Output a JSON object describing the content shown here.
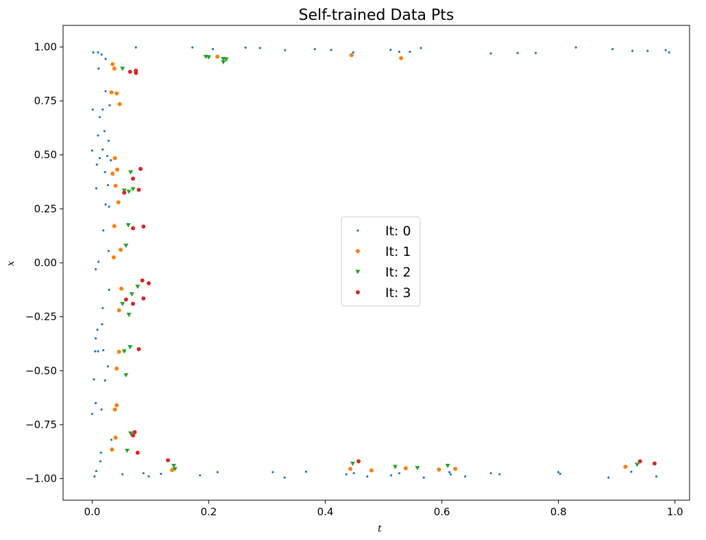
{
  "chart_data": {
    "type": "scatter",
    "title": "Self-trained Data Pts",
    "xlabel": "t",
    "ylabel": "x",
    "xlim": [
      -0.05,
      1.025
    ],
    "ylim": [
      -1.1,
      1.1
    ],
    "xticks": [
      0.0,
      0.2,
      0.4,
      0.6,
      0.8,
      1.0
    ],
    "xtick_labels": [
      "0.0",
      "0.2",
      "0.4",
      "0.6",
      "0.8",
      "1.0"
    ],
    "yticks": [
      1.0,
      0.75,
      0.5,
      0.25,
      0.0,
      -0.25,
      -0.5,
      -0.75,
      -1.0
    ],
    "ytick_labels": [
      "1.00",
      "0.75",
      "0.50",
      "0.25",
      "0.00",
      "−0.25",
      "−0.50",
      "−0.75",
      "−1.00"
    ],
    "grid": false,
    "legend_position": "center",
    "series": [
      {
        "name": "It: 0",
        "marker": "circle-small",
        "color": "#1f77b4",
        "points": [
          [
            0.002,
            0.975
          ],
          [
            0.01,
            0.975
          ],
          [
            0.016,
            0.965
          ],
          [
            0.023,
            0.945
          ],
          [
            0.011,
            0.9
          ],
          [
            0.075,
            0.998
          ],
          [
            0.172,
            0.998
          ],
          [
            0.207,
            0.99
          ],
          [
            0.263,
            0.997
          ],
          [
            0.288,
            0.995
          ],
          [
            0.331,
            0.985
          ],
          [
            0.382,
            0.99
          ],
          [
            0.41,
            0.986
          ],
          [
            0.448,
            0.975
          ],
          [
            0.512,
            0.987
          ],
          [
            0.527,
            0.978
          ],
          [
            0.545,
            0.978
          ],
          [
            0.564,
            0.995
          ],
          [
            0.684,
            0.97
          ],
          [
            0.73,
            0.972
          ],
          [
            0.761,
            0.972
          ],
          [
            0.83,
            0.998
          ],
          [
            0.893,
            0.99
          ],
          [
            0.927,
            0.982
          ],
          [
            0.953,
            0.982
          ],
          [
            0.984,
            0.985
          ],
          [
            0.99,
            0.975
          ],
          [
            0.023,
            0.795
          ],
          [
            0.018,
            0.71
          ],
          [
            0.001,
            0.71
          ],
          [
            0.03,
            0.73
          ],
          [
            0.013,
            0.675
          ],
          [
            0.021,
            0.61
          ],
          [
            0.01,
            0.59
          ],
          [
            0.028,
            0.565
          ],
          [
            0.0,
            0.52
          ],
          [
            0.018,
            0.525
          ],
          [
            0.026,
            0.495
          ],
          [
            0.013,
            0.485
          ],
          [
            0.032,
            0.475
          ],
          [
            0.008,
            0.455
          ],
          [
            0.022,
            0.42
          ],
          [
            0.027,
            0.36
          ],
          [
            0.007,
            0.345
          ],
          [
            0.023,
            0.27
          ],
          [
            0.029,
            0.26
          ],
          [
            0.019,
            0.15
          ],
          [
            0.028,
            0.055
          ],
          [
            0.011,
            0.005
          ],
          [
            0.006,
            -0.03
          ],
          [
            0.029,
            -0.125
          ],
          [
            0.018,
            -0.21
          ],
          [
            0.017,
            -0.285
          ],
          [
            0.009,
            -0.31
          ],
          [
            0.006,
            -0.35
          ],
          [
            0.005,
            -0.41
          ],
          [
            0.01,
            -0.41
          ],
          [
            0.019,
            -0.405
          ],
          [
            0.027,
            -0.48
          ],
          [
            0.003,
            -0.54
          ],
          [
            0.022,
            -0.545
          ],
          [
            0.006,
            -0.65
          ],
          [
            0.016,
            -0.68
          ],
          [
            0.0,
            -0.7
          ],
          [
            0.033,
            -0.82
          ],
          [
            0.015,
            -0.88
          ],
          [
            0.014,
            -0.92
          ],
          [
            0.007,
            -0.965
          ],
          [
            0.004,
            -0.99
          ],
          [
            0.052,
            -0.98
          ],
          [
            0.088,
            -0.975
          ],
          [
            0.097,
            -0.99
          ],
          [
            0.118,
            -0.978
          ],
          [
            0.185,
            -0.985
          ],
          [
            0.215,
            -0.97
          ],
          [
            0.31,
            -0.97
          ],
          [
            0.33,
            -0.995
          ],
          [
            0.367,
            -0.968
          ],
          [
            0.436,
            -0.98
          ],
          [
            0.449,
            -0.975
          ],
          [
            0.472,
            -0.99
          ],
          [
            0.513,
            -0.985
          ],
          [
            0.527,
            -0.975
          ],
          [
            0.569,
            -0.995
          ],
          [
            0.613,
            -0.97
          ],
          [
            0.615,
            -0.98
          ],
          [
            0.64,
            -0.99
          ],
          [
            0.684,
            -0.975
          ],
          [
            0.699,
            -0.98
          ],
          [
            0.8,
            -0.97
          ],
          [
            0.803,
            -0.978
          ],
          [
            0.886,
            -0.995
          ],
          [
            0.925,
            -0.968
          ],
          [
            0.968,
            -0.99
          ]
        ]
      },
      {
        "name": "It: 1",
        "marker": "circle",
        "color": "#ff7f0e",
        "points": [
          [
            0.035,
            0.92
          ],
          [
            0.038,
            0.9
          ],
          [
            0.215,
            0.955
          ],
          [
            0.445,
            0.962
          ],
          [
            0.53,
            0.948
          ],
          [
            0.033,
            0.79
          ],
          [
            0.042,
            0.785
          ],
          [
            0.047,
            0.735
          ],
          [
            0.039,
            0.485
          ],
          [
            0.043,
            0.432
          ],
          [
            0.035,
            0.413
          ],
          [
            0.04,
            0.357
          ],
          [
            0.045,
            0.28
          ],
          [
            0.038,
            0.17
          ],
          [
            0.049,
            0.06
          ],
          [
            0.037,
            0.025
          ],
          [
            0.05,
            -0.12
          ],
          [
            0.046,
            -0.22
          ],
          [
            0.046,
            -0.412
          ],
          [
            0.042,
            -0.49
          ],
          [
            0.042,
            -0.66
          ],
          [
            0.039,
            -0.68
          ],
          [
            0.04,
            -0.81
          ],
          [
            0.034,
            -0.865
          ],
          [
            0.137,
            -0.96
          ],
          [
            0.443,
            -0.955
          ],
          [
            0.479,
            -0.962
          ],
          [
            0.538,
            -0.952
          ],
          [
            0.595,
            -0.958
          ],
          [
            0.623,
            -0.955
          ],
          [
            0.915,
            -0.945
          ]
        ]
      },
      {
        "name": "It: 2",
        "marker": "triangle-down",
        "color": "#2ca02c",
        "points": [
          [
            0.052,
            0.9
          ],
          [
            0.195,
            0.955
          ],
          [
            0.2,
            0.953
          ],
          [
            0.225,
            0.945
          ],
          [
            0.23,
            0.943
          ],
          [
            0.225,
            0.93
          ],
          [
            0.066,
            0.42
          ],
          [
            0.055,
            0.335
          ],
          [
            0.063,
            0.33
          ],
          [
            0.07,
            0.342
          ],
          [
            0.062,
            0.175
          ],
          [
            0.058,
            0.08
          ],
          [
            0.078,
            -0.11
          ],
          [
            0.068,
            -0.145
          ],
          [
            0.052,
            -0.19
          ],
          [
            0.063,
            -0.24
          ],
          [
            0.055,
            -0.41
          ],
          [
            0.065,
            -0.39
          ],
          [
            0.058,
            -0.52
          ],
          [
            0.066,
            -0.79
          ],
          [
            0.06,
            -0.87
          ],
          [
            0.14,
            -0.94
          ],
          [
            0.142,
            -0.955
          ],
          [
            0.447,
            -0.93
          ],
          [
            0.52,
            -0.945
          ],
          [
            0.558,
            -0.95
          ],
          [
            0.61,
            -0.94
          ],
          [
            0.935,
            -0.935
          ]
        ]
      },
      {
        "name": "It: 3",
        "marker": "circle",
        "color": "#d62728",
        "points": [
          [
            0.065,
            0.885
          ],
          [
            0.075,
            0.88
          ],
          [
            0.075,
            0.89
          ],
          [
            0.083,
            0.435
          ],
          [
            0.07,
            0.39
          ],
          [
            0.08,
            0.338
          ],
          [
            0.055,
            0.325
          ],
          [
            0.088,
            0.168
          ],
          [
            0.07,
            0.16
          ],
          [
            0.086,
            -0.082
          ],
          [
            0.097,
            -0.095
          ],
          [
            0.088,
            -0.165
          ],
          [
            0.058,
            -0.17
          ],
          [
            0.07,
            -0.19
          ],
          [
            0.08,
            -0.4
          ],
          [
            0.073,
            -0.785
          ],
          [
            0.07,
            -0.8
          ],
          [
            0.078,
            -0.88
          ],
          [
            0.13,
            -0.915
          ],
          [
            0.457,
            -0.92
          ],
          [
            0.94,
            -0.92
          ],
          [
            0.965,
            -0.93
          ]
        ]
      }
    ]
  }
}
